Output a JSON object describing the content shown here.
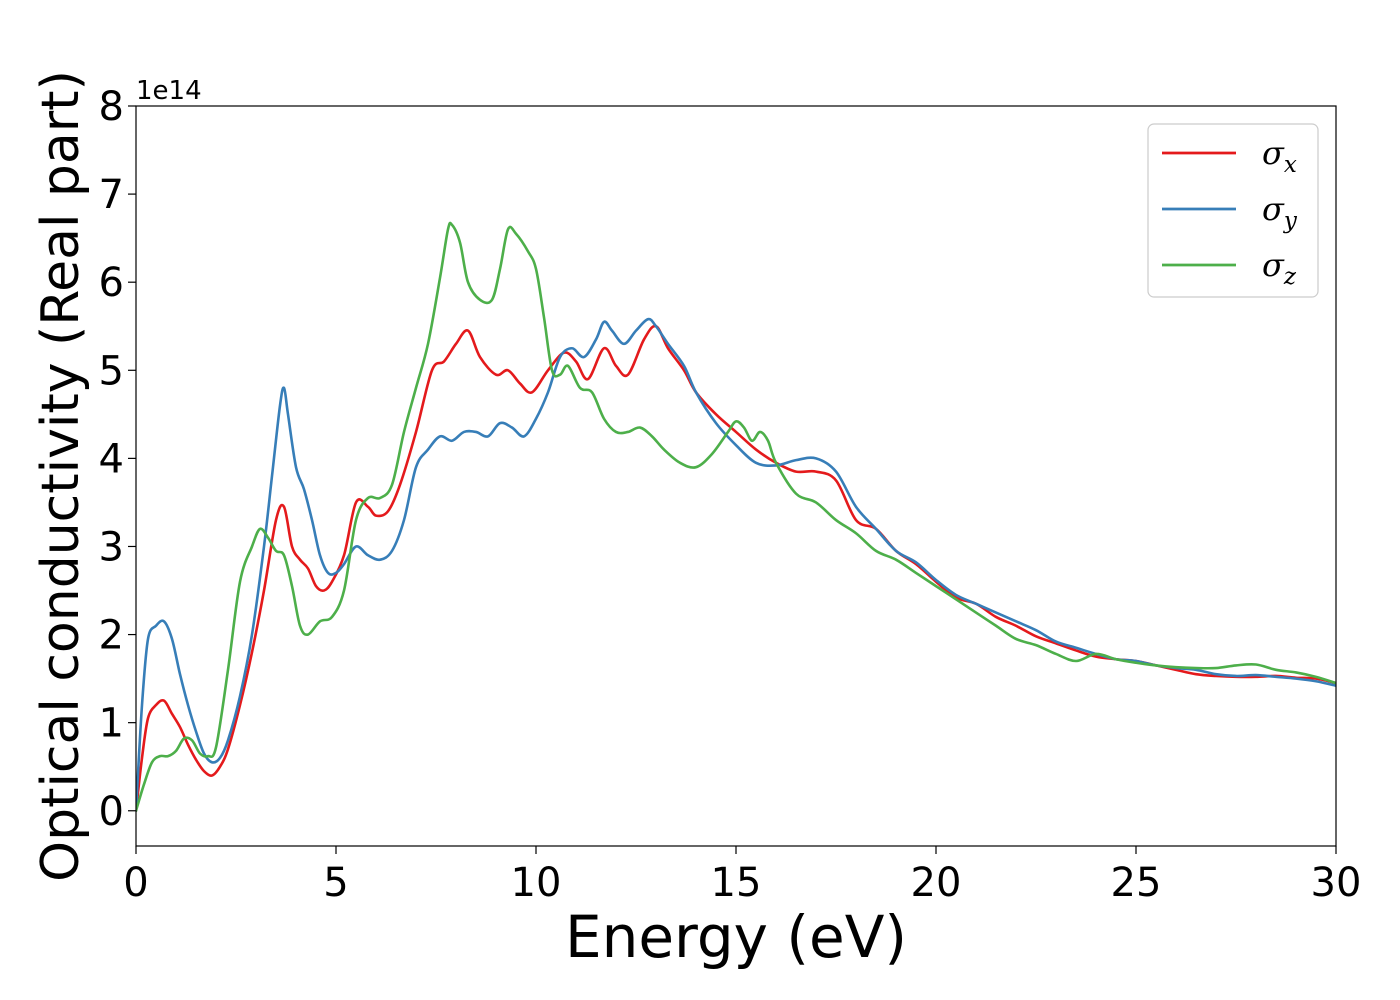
{
  "chart_data": {
    "type": "line",
    "title": "",
    "xlabel": "Energy (eV)",
    "ylabel": "Optical conductivity (Real part)",
    "y_offset_label": "1e14",
    "xlim": [
      0,
      30
    ],
    "ylim": [
      -0.4,
      8
    ],
    "xticks": [
      0,
      5,
      10,
      15,
      20,
      25,
      30
    ],
    "yticks": [
      0,
      1,
      2,
      3,
      4,
      5,
      6,
      7,
      8
    ],
    "xtick_labels": [
      "0",
      "5",
      "10",
      "15",
      "20",
      "25",
      "30"
    ],
    "ytick_labels": [
      "0",
      "1",
      "2",
      "3",
      "4",
      "5",
      "6",
      "7",
      "8"
    ],
    "grid": false,
    "legend_position": "top-right",
    "series": [
      {
        "name": "σx",
        "legend_symbol": "σ",
        "legend_sub": "x",
        "color": "#e41a1c",
        "x": [
          0,
          0.15,
          0.3,
          0.5,
          0.7,
          0.9,
          1.1,
          1.3,
          1.5,
          1.7,
          1.9,
          2.1,
          2.3,
          2.6,
          2.9,
          3.2,
          3.5,
          3.7,
          3.9,
          4.1,
          4.3,
          4.5,
          4.7,
          4.9,
          5.2,
          5.5,
          5.8,
          6.0,
          6.3,
          6.6,
          7.0,
          7.4,
          7.7,
          8.0,
          8.3,
          8.6,
          9.0,
          9.3,
          9.6,
          9.9,
          10.3,
          10.7,
          11.0,
          11.3,
          11.7,
          12.0,
          12.3,
          12.7,
          13.0,
          13.3,
          13.7,
          14.0,
          14.5,
          15.0,
          15.5,
          16.0,
          16.5,
          17.0,
          17.5,
          18.0,
          18.5,
          19.0,
          19.5,
          20.0,
          20.5,
          21.0,
          21.5,
          22.0,
          22.5,
          23.0,
          23.5,
          24.0,
          24.5,
          25.0,
          25.5,
          26.0,
          26.5,
          27.0,
          27.5,
          28.0,
          28.5,
          29.0,
          29.5,
          30.0
        ],
        "y": [
          0.0,
          0.6,
          1.05,
          1.2,
          1.25,
          1.1,
          0.95,
          0.75,
          0.58,
          0.45,
          0.4,
          0.5,
          0.7,
          1.2,
          1.8,
          2.5,
          3.3,
          3.45,
          3.0,
          2.85,
          2.75,
          2.55,
          2.5,
          2.6,
          2.9,
          3.5,
          3.45,
          3.35,
          3.4,
          3.7,
          4.3,
          5.0,
          5.1,
          5.3,
          5.45,
          5.15,
          4.95,
          5.0,
          4.85,
          4.75,
          5.0,
          5.2,
          5.1,
          4.9,
          5.25,
          5.05,
          4.95,
          5.35,
          5.5,
          5.25,
          5.0,
          4.75,
          4.5,
          4.3,
          4.1,
          3.95,
          3.85,
          3.85,
          3.75,
          3.3,
          3.2,
          2.95,
          2.8,
          2.6,
          2.42,
          2.35,
          2.2,
          2.1,
          1.98,
          1.9,
          1.82,
          1.75,
          1.72,
          1.7,
          1.65,
          1.6,
          1.55,
          1.53,
          1.52,
          1.52,
          1.53,
          1.51,
          1.5,
          1.45
        ]
      },
      {
        "name": "σy",
        "legend_symbol": "σ",
        "legend_sub": "y",
        "color": "#377eb8",
        "x": [
          0,
          0.15,
          0.3,
          0.5,
          0.7,
          0.9,
          1.1,
          1.3,
          1.5,
          1.7,
          1.9,
          2.1,
          2.3,
          2.6,
          2.9,
          3.2,
          3.4,
          3.6,
          3.7,
          3.8,
          4.0,
          4.2,
          4.4,
          4.6,
          4.8,
          5.0,
          5.2,
          5.5,
          5.8,
          6.1,
          6.4,
          6.7,
          7.0,
          7.3,
          7.6,
          7.9,
          8.2,
          8.5,
          8.8,
          9.1,
          9.4,
          9.7,
          10.0,
          10.3,
          10.6,
          10.9,
          11.2,
          11.5,
          11.7,
          11.9,
          12.2,
          12.5,
          12.8,
          13.0,
          13.3,
          13.7,
          14.0,
          14.5,
          15.0,
          15.5,
          16.0,
          16.5,
          17.0,
          17.5,
          18.0,
          18.5,
          19.0,
          19.5,
          20.0,
          20.5,
          21.0,
          21.5,
          22.0,
          22.5,
          23.0,
          23.5,
          24.0,
          24.5,
          25.0,
          25.5,
          26.0,
          26.5,
          27.0,
          27.5,
          28.0,
          28.5,
          29.0,
          29.5,
          30.0
        ],
        "y": [
          0.0,
          1.2,
          1.95,
          2.1,
          2.15,
          1.95,
          1.55,
          1.2,
          0.9,
          0.65,
          0.55,
          0.6,
          0.8,
          1.3,
          2.0,
          3.0,
          3.8,
          4.6,
          4.8,
          4.5,
          3.9,
          3.65,
          3.3,
          2.9,
          2.7,
          2.7,
          2.8,
          3.0,
          2.9,
          2.85,
          2.95,
          3.3,
          3.9,
          4.1,
          4.25,
          4.2,
          4.3,
          4.3,
          4.25,
          4.4,
          4.35,
          4.25,
          4.45,
          4.75,
          5.15,
          5.25,
          5.15,
          5.35,
          5.55,
          5.45,
          5.3,
          5.45,
          5.58,
          5.5,
          5.3,
          5.05,
          4.75,
          4.4,
          4.15,
          3.95,
          3.92,
          3.98,
          4.0,
          3.85,
          3.45,
          3.2,
          2.95,
          2.82,
          2.62,
          2.45,
          2.35,
          2.25,
          2.15,
          2.05,
          1.92,
          1.85,
          1.78,
          1.72,
          1.7,
          1.65,
          1.62,
          1.6,
          1.55,
          1.53,
          1.54,
          1.52,
          1.5,
          1.47,
          1.42
        ]
      },
      {
        "name": "σz",
        "legend_symbol": "σ",
        "legend_sub": "z",
        "color": "#4daf4a",
        "x": [
          0,
          0.2,
          0.4,
          0.6,
          0.8,
          1.0,
          1.2,
          1.4,
          1.6,
          1.8,
          2.0,
          2.3,
          2.6,
          2.9,
          3.1,
          3.3,
          3.5,
          3.7,
          3.9,
          4.1,
          4.3,
          4.6,
          4.9,
          5.2,
          5.5,
          5.8,
          6.1,
          6.4,
          6.7,
          7.0,
          7.3,
          7.6,
          7.8,
          7.9,
          8.1,
          8.3,
          8.6,
          8.9,
          9.1,
          9.3,
          9.5,
          9.8,
          10.0,
          10.2,
          10.4,
          10.6,
          10.8,
          11.1,
          11.4,
          11.7,
          12.0,
          12.3,
          12.6,
          12.9,
          13.2,
          13.6,
          14.0,
          14.4,
          14.8,
          15.0,
          15.2,
          15.4,
          15.6,
          15.8,
          16.0,
          16.5,
          17.0,
          17.5,
          18.0,
          18.5,
          19.0,
          19.5,
          20.0,
          20.5,
          21.0,
          21.5,
          22.0,
          22.5,
          23.0,
          23.5,
          24.0,
          24.5,
          25.0,
          25.5,
          26.0,
          26.5,
          27.0,
          27.5,
          28.0,
          28.5,
          29.0,
          29.5,
          30.0
        ],
        "y": [
          0.0,
          0.3,
          0.55,
          0.62,
          0.62,
          0.68,
          0.82,
          0.8,
          0.65,
          0.62,
          0.72,
          1.6,
          2.6,
          3.0,
          3.2,
          3.1,
          2.95,
          2.9,
          2.55,
          2.1,
          2.0,
          2.15,
          2.2,
          2.5,
          3.3,
          3.55,
          3.55,
          3.7,
          4.3,
          4.8,
          5.3,
          6.05,
          6.6,
          6.65,
          6.45,
          6.0,
          5.8,
          5.8,
          6.15,
          6.6,
          6.55,
          6.35,
          6.15,
          5.6,
          5.0,
          4.95,
          5.05,
          4.8,
          4.75,
          4.45,
          4.3,
          4.3,
          4.35,
          4.25,
          4.1,
          3.95,
          3.9,
          4.05,
          4.3,
          4.42,
          4.35,
          4.2,
          4.3,
          4.2,
          3.95,
          3.6,
          3.5,
          3.3,
          3.15,
          2.95,
          2.85,
          2.7,
          2.55,
          2.4,
          2.25,
          2.1,
          1.95,
          1.88,
          1.78,
          1.7,
          1.78,
          1.72,
          1.68,
          1.65,
          1.63,
          1.62,
          1.62,
          1.65,
          1.66,
          1.6,
          1.57,
          1.52,
          1.45
        ]
      }
    ]
  }
}
